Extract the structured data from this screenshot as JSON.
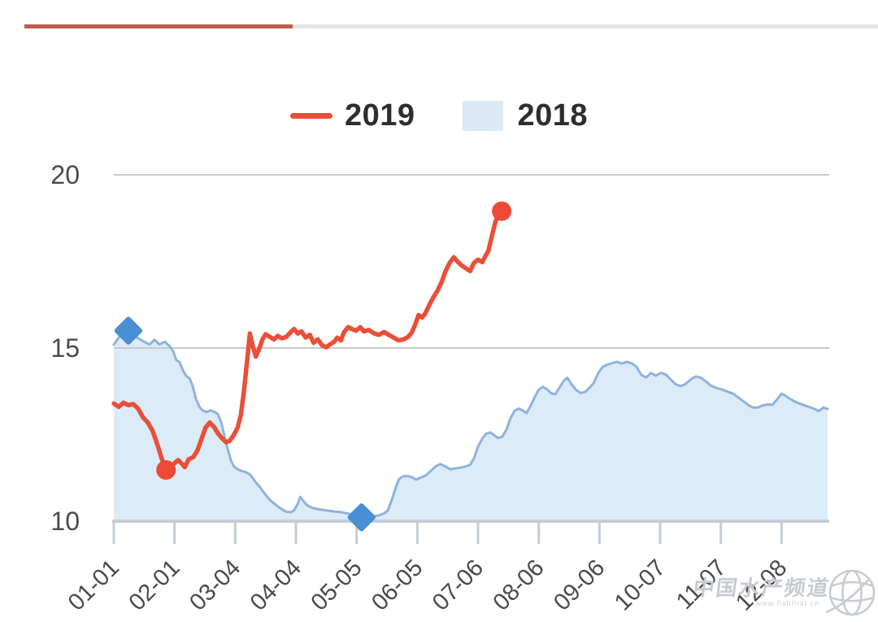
{
  "top_bar": {
    "red_color": "#c05b4d",
    "gray_color": "#e4e4e4"
  },
  "legend": {
    "items": [
      {
        "label": "2019",
        "swatch": "line",
        "color": "#ea4f39"
      },
      {
        "label": "2018",
        "swatch": "area",
        "color": "#dbe8f6"
      }
    ]
  },
  "watermark": {
    "title": "中国水产频道",
    "url": "www.fishfirst.cn",
    "color": "#c7cbd0"
  },
  "chart_data": {
    "type": "line",
    "title": "",
    "xlabel": "",
    "ylabel": "",
    "x_unit": "tick index (0 = first tick 01-01, dates are month-day)",
    "x_tick_labels": [
      "01-01",
      "02-01",
      "03-04",
      "04-04",
      "05-05",
      "06-05",
      "07-06",
      "08-06",
      "09-06",
      "10-07",
      "11-07",
      "12-08"
    ],
    "y_ticks": [
      10,
      15,
      20
    ],
    "y_tick_labels": [
      "20",
      "15",
      "10"
    ],
    "ylim": [
      10,
      20.5
    ],
    "grid": "horizontal lines at 15 and 20, baseline at 10",
    "legend_position": "top-center",
    "axis_color": "#c3cdd6",
    "grid_color": "#c9c9c9",
    "label_color": "#4a4a4a",
    "series": [
      {
        "name": "2019",
        "type": "line",
        "color": "#ea4f39",
        "marker_color": "#ee4a36",
        "markers": [
          [
            0.86,
            11.48
          ],
          [
            6.39,
            18.95
          ]
        ],
        "points": [
          [
            0.0,
            13.4
          ],
          [
            0.08,
            13.3
          ],
          [
            0.16,
            13.42
          ],
          [
            0.24,
            13.35
          ],
          [
            0.32,
            13.38
          ],
          [
            0.4,
            13.25
          ],
          [
            0.48,
            13.0
          ],
          [
            0.56,
            12.85
          ],
          [
            0.64,
            12.6
          ],
          [
            0.72,
            12.2
          ],
          [
            0.79,
            11.8
          ],
          [
            0.86,
            11.48
          ],
          [
            0.92,
            11.52
          ],
          [
            1.0,
            11.68
          ],
          [
            1.06,
            11.76
          ],
          [
            1.12,
            11.66
          ],
          [
            1.17,
            11.56
          ],
          [
            1.23,
            11.78
          ],
          [
            1.31,
            11.85
          ],
          [
            1.38,
            12.05
          ],
          [
            1.45,
            12.4
          ],
          [
            1.51,
            12.7
          ],
          [
            1.58,
            12.85
          ],
          [
            1.65,
            12.72
          ],
          [
            1.71,
            12.55
          ],
          [
            1.78,
            12.4
          ],
          [
            1.85,
            12.28
          ],
          [
            1.91,
            12.32
          ],
          [
            1.98,
            12.5
          ],
          [
            2.04,
            12.7
          ],
          [
            2.09,
            13.05
          ],
          [
            2.14,
            13.7
          ],
          [
            2.2,
            14.7
          ],
          [
            2.24,
            15.42
          ],
          [
            2.29,
            15.05
          ],
          [
            2.34,
            14.75
          ],
          [
            2.4,
            15.0
          ],
          [
            2.45,
            15.25
          ],
          [
            2.5,
            15.4
          ],
          [
            2.57,
            15.32
          ],
          [
            2.64,
            15.25
          ],
          [
            2.7,
            15.35
          ],
          [
            2.77,
            15.28
          ],
          [
            2.84,
            15.32
          ],
          [
            2.91,
            15.45
          ],
          [
            2.97,
            15.55
          ],
          [
            3.03,
            15.42
          ],
          [
            3.09,
            15.48
          ],
          [
            3.16,
            15.3
          ],
          [
            3.23,
            15.38
          ],
          [
            3.29,
            15.15
          ],
          [
            3.36,
            15.25
          ],
          [
            3.43,
            15.08
          ],
          [
            3.5,
            15.02
          ],
          [
            3.56,
            15.1
          ],
          [
            3.63,
            15.18
          ],
          [
            3.68,
            15.3
          ],
          [
            3.74,
            15.22
          ],
          [
            3.79,
            15.45
          ],
          [
            3.86,
            15.6
          ],
          [
            3.92,
            15.55
          ],
          [
            3.99,
            15.5
          ],
          [
            4.06,
            15.6
          ],
          [
            4.12,
            15.48
          ],
          [
            4.2,
            15.52
          ],
          [
            4.29,
            15.42
          ],
          [
            4.37,
            15.38
          ],
          [
            4.45,
            15.46
          ],
          [
            4.53,
            15.38
          ],
          [
            4.61,
            15.3
          ],
          [
            4.69,
            15.22
          ],
          [
            4.77,
            15.25
          ],
          [
            4.85,
            15.32
          ],
          [
            4.91,
            15.45
          ],
          [
            4.97,
            15.7
          ],
          [
            5.02,
            15.95
          ],
          [
            5.08,
            15.88
          ],
          [
            5.13,
            16.0
          ],
          [
            5.2,
            16.25
          ],
          [
            5.26,
            16.45
          ],
          [
            5.33,
            16.65
          ],
          [
            5.4,
            16.9
          ],
          [
            5.46,
            17.2
          ],
          [
            5.53,
            17.45
          ],
          [
            5.6,
            17.62
          ],
          [
            5.66,
            17.5
          ],
          [
            5.73,
            17.38
          ],
          [
            5.8,
            17.3
          ],
          [
            5.87,
            17.22
          ],
          [
            5.93,
            17.45
          ],
          [
            6.0,
            17.55
          ],
          [
            6.07,
            17.48
          ],
          [
            6.12,
            17.65
          ],
          [
            6.17,
            17.8
          ],
          [
            6.23,
            18.25
          ],
          [
            6.28,
            18.6
          ],
          [
            6.33,
            18.85
          ],
          [
            6.39,
            18.95
          ]
        ]
      },
      {
        "name": "2018",
        "type": "area",
        "color": "#8fb2db",
        "fill_color": "#dcebf8",
        "marker_color": "#4a8fd4",
        "markers": [
          [
            0.24,
            15.5
          ],
          [
            4.08,
            10.11
          ]
        ],
        "points": [
          [
            0.0,
            15.1
          ],
          [
            0.08,
            15.3
          ],
          [
            0.16,
            15.45
          ],
          [
            0.24,
            15.5
          ],
          [
            0.32,
            15.38
          ],
          [
            0.4,
            15.28
          ],
          [
            0.5,
            15.18
          ],
          [
            0.59,
            15.1
          ],
          [
            0.67,
            15.24
          ],
          [
            0.75,
            15.1
          ],
          [
            0.84,
            15.18
          ],
          [
            0.92,
            15.05
          ],
          [
            0.98,
            14.9
          ],
          [
            1.03,
            14.65
          ],
          [
            1.08,
            14.6
          ],
          [
            1.14,
            14.35
          ],
          [
            1.19,
            14.2
          ],
          [
            1.25,
            14.12
          ],
          [
            1.3,
            13.9
          ],
          [
            1.35,
            13.55
          ],
          [
            1.41,
            13.3
          ],
          [
            1.46,
            13.2
          ],
          [
            1.53,
            13.15
          ],
          [
            1.59,
            13.2
          ],
          [
            1.66,
            13.15
          ],
          [
            1.71,
            13.1
          ],
          [
            1.77,
            12.85
          ],
          [
            1.81,
            12.55
          ],
          [
            1.85,
            12.25
          ],
          [
            1.89,
            12.0
          ],
          [
            1.93,
            11.75
          ],
          [
            1.98,
            11.58
          ],
          [
            2.04,
            11.5
          ],
          [
            2.1,
            11.45
          ],
          [
            2.17,
            11.42
          ],
          [
            2.24,
            11.35
          ],
          [
            2.29,
            11.25
          ],
          [
            2.34,
            11.12
          ],
          [
            2.4,
            11.0
          ],
          [
            2.45,
            10.88
          ],
          [
            2.52,
            10.72
          ],
          [
            2.58,
            10.6
          ],
          [
            2.65,
            10.5
          ],
          [
            2.72,
            10.4
          ],
          [
            2.79,
            10.32
          ],
          [
            2.85,
            10.27
          ],
          [
            2.92,
            10.26
          ],
          [
            2.97,
            10.32
          ],
          [
            3.03,
            10.5
          ],
          [
            3.07,
            10.7
          ],
          [
            3.11,
            10.62
          ],
          [
            3.16,
            10.5
          ],
          [
            3.21,
            10.43
          ],
          [
            3.28,
            10.38
          ],
          [
            3.36,
            10.35
          ],
          [
            3.46,
            10.32
          ],
          [
            3.55,
            10.3
          ],
          [
            3.64,
            10.28
          ],
          [
            3.74,
            10.26
          ],
          [
            3.83,
            10.23
          ],
          [
            3.92,
            10.2
          ],
          [
            4.0,
            10.16
          ],
          [
            4.08,
            10.11
          ],
          [
            4.18,
            10.11
          ],
          [
            4.27,
            10.14
          ],
          [
            4.37,
            10.17
          ],
          [
            4.45,
            10.22
          ],
          [
            4.51,
            10.3
          ],
          [
            4.58,
            10.62
          ],
          [
            4.65,
            11.0
          ],
          [
            4.7,
            11.22
          ],
          [
            4.77,
            11.3
          ],
          [
            4.85,
            11.3
          ],
          [
            4.91,
            11.27
          ],
          [
            4.98,
            11.2
          ],
          [
            5.06,
            11.26
          ],
          [
            5.14,
            11.32
          ],
          [
            5.22,
            11.45
          ],
          [
            5.3,
            11.58
          ],
          [
            5.38,
            11.65
          ],
          [
            5.46,
            11.58
          ],
          [
            5.54,
            11.5
          ],
          [
            5.62,
            11.52
          ],
          [
            5.7,
            11.54
          ],
          [
            5.78,
            11.57
          ],
          [
            5.87,
            11.63
          ],
          [
            5.93,
            11.8
          ],
          [
            6.0,
            12.15
          ],
          [
            6.07,
            12.38
          ],
          [
            6.13,
            12.52
          ],
          [
            6.2,
            12.56
          ],
          [
            6.27,
            12.48
          ],
          [
            6.33,
            12.4
          ],
          [
            6.4,
            12.44
          ],
          [
            6.47,
            12.65
          ],
          [
            6.53,
            12.95
          ],
          [
            6.6,
            13.18
          ],
          [
            6.67,
            13.25
          ],
          [
            6.73,
            13.2
          ],
          [
            6.8,
            13.12
          ],
          [
            6.87,
            13.35
          ],
          [
            6.94,
            13.6
          ],
          [
            7.0,
            13.8
          ],
          [
            7.07,
            13.88
          ],
          [
            7.14,
            13.8
          ],
          [
            7.2,
            13.7
          ],
          [
            7.27,
            13.66
          ],
          [
            7.34,
            13.85
          ],
          [
            7.41,
            14.05
          ],
          [
            7.47,
            14.14
          ],
          [
            7.54,
            13.95
          ],
          [
            7.61,
            13.8
          ],
          [
            7.69,
            13.7
          ],
          [
            7.77,
            13.74
          ],
          [
            7.85,
            13.88
          ],
          [
            7.91,
            14.0
          ],
          [
            7.98,
            14.28
          ],
          [
            8.05,
            14.45
          ],
          [
            8.13,
            14.52
          ],
          [
            8.21,
            14.56
          ],
          [
            8.29,
            14.6
          ],
          [
            8.37,
            14.55
          ],
          [
            8.45,
            14.6
          ],
          [
            8.53,
            14.56
          ],
          [
            8.61,
            14.46
          ],
          [
            8.69,
            14.22
          ],
          [
            8.77,
            14.15
          ],
          [
            8.85,
            14.28
          ],
          [
            8.93,
            14.2
          ],
          [
            9.01,
            14.28
          ],
          [
            9.09,
            14.24
          ],
          [
            9.17,
            14.1
          ],
          [
            9.25,
            13.96
          ],
          [
            9.33,
            13.9
          ],
          [
            9.41,
            13.95
          ],
          [
            9.51,
            14.1
          ],
          [
            9.59,
            14.18
          ],
          [
            9.67,
            14.14
          ],
          [
            9.75,
            14.04
          ],
          [
            9.83,
            13.92
          ],
          [
            9.92,
            13.85
          ],
          [
            10.02,
            13.8
          ],
          [
            10.11,
            13.74
          ],
          [
            10.2,
            13.68
          ],
          [
            10.28,
            13.58
          ],
          [
            10.36,
            13.48
          ],
          [
            10.45,
            13.36
          ],
          [
            10.53,
            13.28
          ],
          [
            10.61,
            13.28
          ],
          [
            10.69,
            13.34
          ],
          [
            10.77,
            13.37
          ],
          [
            10.85,
            13.36
          ],
          [
            10.93,
            13.52
          ],
          [
            11.0,
            13.68
          ],
          [
            11.06,
            13.63
          ],
          [
            11.13,
            13.54
          ],
          [
            11.21,
            13.46
          ],
          [
            11.29,
            13.4
          ],
          [
            11.37,
            13.35
          ],
          [
            11.45,
            13.3
          ],
          [
            11.53,
            13.25
          ],
          [
            11.61,
            13.18
          ],
          [
            11.69,
            13.28
          ],
          [
            11.76,
            13.24
          ]
        ]
      }
    ]
  }
}
